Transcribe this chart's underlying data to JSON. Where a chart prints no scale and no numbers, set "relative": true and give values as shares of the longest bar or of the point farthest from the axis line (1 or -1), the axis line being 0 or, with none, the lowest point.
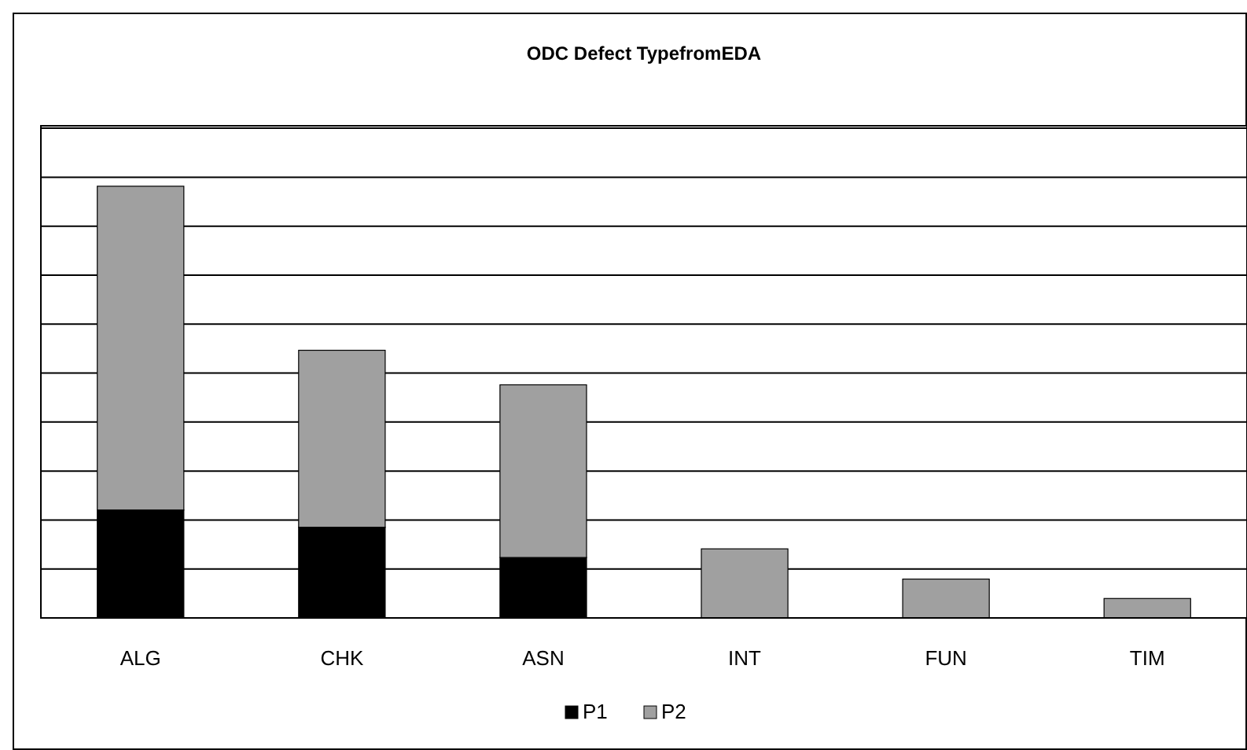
{
  "chart_data": {
    "type": "bar",
    "title": "ODC Defect TypefromEDA",
    "categories": [
      "ALG",
      "CHK",
      "ASN",
      "INT",
      "FUN",
      "TIM"
    ],
    "stacked": true,
    "relative": true,
    "grid": true,
    "legend": "bottom",
    "series": [
      {
        "name": "P1",
        "color": "#000000",
        "values": [
          0.25,
          0.21,
          0.14,
          0,
          0,
          0
        ]
      },
      {
        "name": "P2",
        "color": "#a0a0a0",
        "values": [
          0.75,
          0.41,
          0.4,
          0.16,
          0.09,
          0.045
        ]
      }
    ]
  }
}
